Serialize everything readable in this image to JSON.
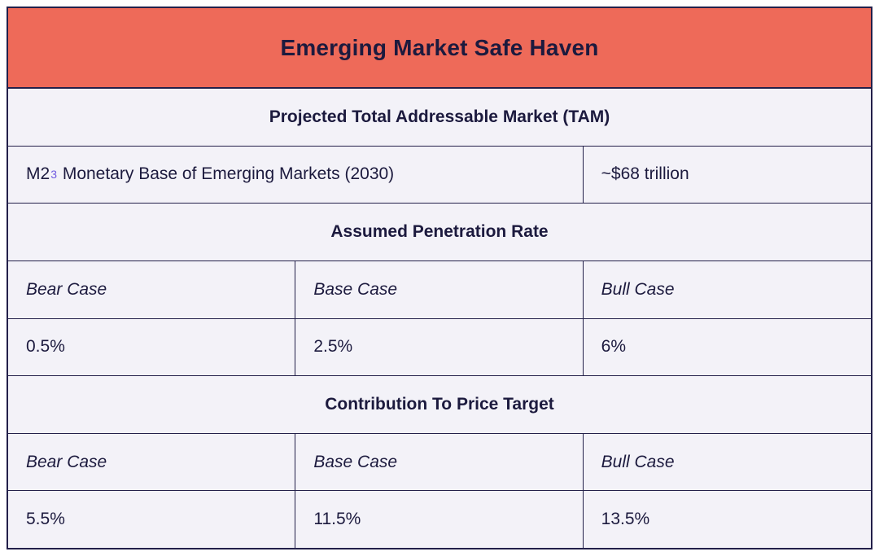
{
  "title": "Emerging Market Safe Haven",
  "tam": {
    "header": "Projected Total Addressable Market (TAM)",
    "metric_prefix": "M2",
    "metric_footnote": "3",
    "metric_rest": " Monetary Base of Emerging Markets (2030)",
    "value": "~$68 trillion"
  },
  "penetration": {
    "header": "Assumed Penetration Rate",
    "cases": [
      "Bear Case",
      "Base Case",
      "Bull Case"
    ],
    "values": [
      "0.5%",
      "2.5%",
      "6%"
    ]
  },
  "contribution": {
    "header": "Contribution To Price Target",
    "cases": [
      "Bear Case",
      "Base Case",
      "Bull Case"
    ],
    "values": [
      "5.5%",
      "11.5%",
      "13.5%"
    ]
  },
  "colors": {
    "banner_bg": "#ee6a59",
    "cell_bg": "#f3f2f8",
    "border": "#23204a",
    "text": "#1c1a3e",
    "footnote": "#6f5ae0"
  }
}
